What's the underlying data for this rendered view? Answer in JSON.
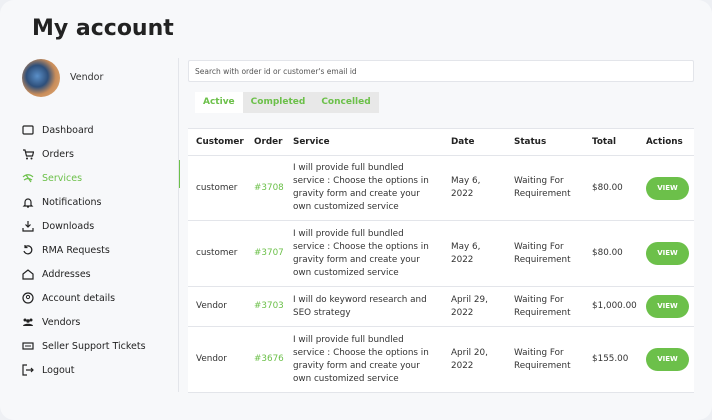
{
  "header": {
    "title": "My account"
  },
  "user": {
    "name": "Vendor"
  },
  "menu": {
    "items": [
      "Dashboard",
      "Orders",
      "Services",
      "Notifications",
      "Downloads",
      "RMA Requests",
      "Addresses",
      "Account details",
      "Vendors",
      "Seller Support Tickets",
      "Logout"
    ]
  },
  "search": {
    "placeholder": "Search with order id or customer's email id"
  },
  "tabs": [
    "Active",
    "Completed",
    "Concelled"
  ],
  "table": {
    "columns": [
      "Customer",
      "Order",
      "Service",
      "Date",
      "Status",
      "Total",
      "Actions"
    ],
    "rows": [
      [
        "customer",
        "#3708",
        "I will provide full bundled service : Choose the options in gravity form and create your own customized service",
        "May 6, 2022",
        "Waiting For Requirement",
        "$80.00",
        "VIEW"
      ],
      [
        "customer",
        "#3707",
        "I will provide full bundled service : Choose the options in gravity form and create your own customized service",
        "May 6, 2022",
        "Waiting For Requirement",
        "$80.00",
        "VIEW"
      ],
      [
        "Vendor",
        "#3703",
        "I will do keyword research and SEO strategy",
        "April 29, 2022",
        "Waiting For Requirement",
        "$1,000.00",
        "VIEW"
      ],
      [
        "Vendor",
        "#3676",
        "I will provide full bundled service : Choose the options in gravity form and create your own customized service",
        "April 20, 2022",
        "Waiting For Requirement",
        "$155.00",
        "VIEW"
      ]
    ]
  }
}
